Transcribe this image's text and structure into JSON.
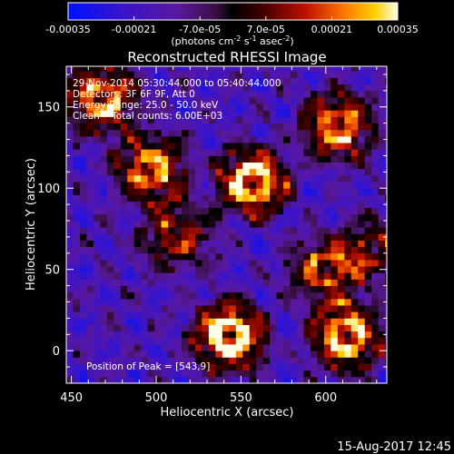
{
  "chart_data": {
    "type": "heatmap",
    "title": "Reconstructed RHESSI Image",
    "xlabel": "Heliocentric X (arcsec)",
    "ylabel": "Heliocentric Y (arcsec)",
    "xlim": [
      447,
      636
    ],
    "ylim": [
      -20,
      175
    ],
    "x_ticks": [
      "450",
      "500",
      "550",
      "600"
    ],
    "x_tick_values": [
      450,
      500,
      550,
      600
    ],
    "y_ticks": [
      "0",
      "50",
      "100",
      "150"
    ],
    "y_tick_values": [
      0,
      50,
      100,
      150
    ],
    "colorbar": {
      "min": -0.00035,
      "max": 0.00035,
      "tick_labels": [
        "-0.00035",
        "-0.00021",
        "-7.0e-05",
        "7.0e-05",
        "0.00021",
        "0.00035"
      ],
      "tick_values": [
        -0.00035,
        -0.00021,
        -7e-05,
        7e-05,
        0.00021,
        0.00035
      ],
      "units_prefix": "(photons cm",
      "units_sup1": "-2",
      "units_mid1": " s",
      "units_sup2": "-1",
      "units_mid2": " asec",
      "units_sup3": "-2",
      "units_suffix": ")"
    },
    "annotations": {
      "line1": "29-Nov-2014 05:30:44.000 to 05:40:44.000",
      "line2": "Detectors: 3F 6F 9F, Att 0",
      "line3": "Energy Range: 25.0 - 50.0 keV",
      "line4": "Clean    Total counts: 6.00E+03",
      "peak": "Position of Peak = [543,9]"
    },
    "sources": [
      {
        "x": 543,
        "y": 9,
        "strength": 1.0
      },
      {
        "x": 557,
        "y": 104,
        "strength": 0.9
      },
      {
        "x": 497,
        "y": 112,
        "strength": 0.75
      },
      {
        "x": 468,
        "y": 155,
        "strength": 0.8
      },
      {
        "x": 612,
        "y": 9,
        "strength": 0.85
      },
      {
        "x": 599,
        "y": 50,
        "strength": 0.6
      },
      {
        "x": 607,
        "y": 138,
        "strength": 0.75
      },
      {
        "x": 512,
        "y": 71,
        "strength": 0.55
      },
      {
        "x": 629,
        "y": 62,
        "strength": 0.45
      }
    ],
    "grid": false
  },
  "footer": {
    "timestamp": "15-Aug-2017 12:45"
  }
}
